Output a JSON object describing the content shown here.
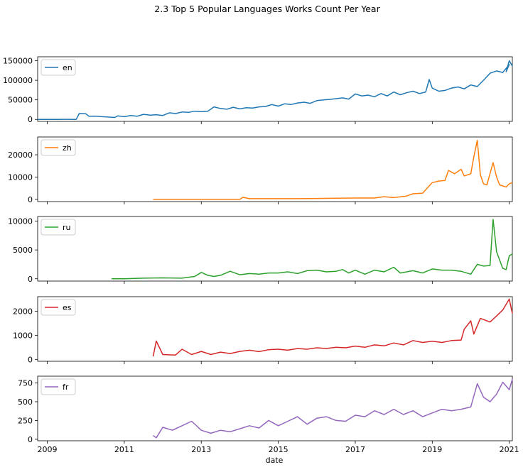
{
  "chart_data": {
    "type": "line",
    "title": "2.3 Top 5 Popular Languages Works Count Per Year",
    "xlabel": "date",
    "x_range": [
      2008.75,
      2021.08
    ],
    "x_ticks": [
      2009,
      2011,
      2013,
      2015,
      2017,
      2019,
      2021
    ],
    "legend_position": "upper-left",
    "panels": [
      {
        "series_name": "en",
        "color": "#1f77b4",
        "ylim": [
          -5000,
          160000
        ],
        "y_ticks": [
          0,
          50000,
          100000,
          150000
        ],
        "points": [
          [
            2008.75,
            0
          ],
          [
            2009.0,
            0
          ],
          [
            2009.25,
            100
          ],
          [
            2009.5,
            200
          ],
          [
            2009.75,
            0
          ],
          [
            2009.83,
            15000
          ],
          [
            2010.0,
            14500
          ],
          [
            2010.08,
            8000
          ],
          [
            2010.25,
            8500
          ],
          [
            2010.42,
            7000
          ],
          [
            2010.58,
            6000
          ],
          [
            2010.75,
            5000
          ],
          [
            2010.83,
            9000
          ],
          [
            2011.0,
            7000
          ],
          [
            2011.17,
            10000
          ],
          [
            2011.33,
            8000
          ],
          [
            2011.5,
            13000
          ],
          [
            2011.67,
            11000
          ],
          [
            2011.83,
            12000
          ],
          [
            2012.0,
            10000
          ],
          [
            2012.17,
            17000
          ],
          [
            2012.33,
            15000
          ],
          [
            2012.5,
            19000
          ],
          [
            2012.67,
            18000
          ],
          [
            2012.83,
            21000
          ],
          [
            2013.0,
            20000
          ],
          [
            2013.17,
            21000
          ],
          [
            2013.33,
            32000
          ],
          [
            2013.5,
            28000
          ],
          [
            2013.67,
            26000
          ],
          [
            2013.83,
            31000
          ],
          [
            2014.0,
            27000
          ],
          [
            2014.17,
            30000
          ],
          [
            2014.33,
            29000
          ],
          [
            2014.5,
            32000
          ],
          [
            2014.67,
            33000
          ],
          [
            2014.83,
            38000
          ],
          [
            2015.0,
            34000
          ],
          [
            2015.17,
            40000
          ],
          [
            2015.33,
            38000
          ],
          [
            2015.5,
            42000
          ],
          [
            2015.67,
            44000
          ],
          [
            2015.83,
            41000
          ],
          [
            2016.0,
            48000
          ],
          [
            2016.17,
            50000
          ],
          [
            2016.33,
            51000
          ],
          [
            2016.5,
            53000
          ],
          [
            2016.67,
            55000
          ],
          [
            2016.83,
            52000
          ],
          [
            2017.0,
            65000
          ],
          [
            2017.17,
            60000
          ],
          [
            2017.33,
            62000
          ],
          [
            2017.5,
            58000
          ],
          [
            2017.67,
            66000
          ],
          [
            2017.83,
            60000
          ],
          [
            2018.0,
            70000
          ],
          [
            2018.17,
            63000
          ],
          [
            2018.33,
            68000
          ],
          [
            2018.5,
            72000
          ],
          [
            2018.67,
            66000
          ],
          [
            2018.83,
            70000
          ],
          [
            2018.92,
            102000
          ],
          [
            2019.0,
            80000
          ],
          [
            2019.17,
            72000
          ],
          [
            2019.33,
            74000
          ],
          [
            2019.5,
            80000
          ],
          [
            2019.67,
            83000
          ],
          [
            2019.83,
            78000
          ],
          [
            2020.0,
            88000
          ],
          [
            2020.17,
            84000
          ],
          [
            2020.33,
            100000
          ],
          [
            2020.5,
            118000
          ],
          [
            2020.67,
            124000
          ],
          [
            2020.83,
            120000
          ],
          [
            2021.0,
            140000
          ],
          [
            2020.92,
            122000
          ],
          [
            2021.0,
            150000
          ],
          [
            2021.08,
            136000
          ]
        ]
      },
      {
        "series_name": "zh",
        "color": "#ff7f0e",
        "ylim": [
          -1000,
          28000
        ],
        "y_ticks": [
          0,
          10000,
          20000
        ],
        "points": [
          [
            2011.75,
            0
          ],
          [
            2012.5,
            0
          ],
          [
            2013.5,
            0
          ],
          [
            2014.0,
            0
          ],
          [
            2014.08,
            900
          ],
          [
            2014.25,
            300
          ],
          [
            2015.0,
            300
          ],
          [
            2015.5,
            300
          ],
          [
            2016.0,
            400
          ],
          [
            2016.5,
            500
          ],
          [
            2017.0,
            600
          ],
          [
            2017.5,
            600
          ],
          [
            2017.75,
            1200
          ],
          [
            2018.0,
            800
          ],
          [
            2018.33,
            1500
          ],
          [
            2018.5,
            2500
          ],
          [
            2018.75,
            2800
          ],
          [
            2019.0,
            7500
          ],
          [
            2019.17,
            8200
          ],
          [
            2019.33,
            8500
          ],
          [
            2019.42,
            13000
          ],
          [
            2019.58,
            11500
          ],
          [
            2019.75,
            13500
          ],
          [
            2019.83,
            10500
          ],
          [
            2020.0,
            11500
          ],
          [
            2020.08,
            19000
          ],
          [
            2020.17,
            26500
          ],
          [
            2020.25,
            11000
          ],
          [
            2020.33,
            7000
          ],
          [
            2020.42,
            6500
          ],
          [
            2020.58,
            16500
          ],
          [
            2020.67,
            10000
          ],
          [
            2020.75,
            6500
          ],
          [
            2020.83,
            6000
          ],
          [
            2020.92,
            5500
          ],
          [
            2021.0,
            7000
          ],
          [
            2021.08,
            7500
          ]
        ]
      },
      {
        "series_name": "ru",
        "color": "#2ca02c",
        "ylim": [
          -400,
          10800
        ],
        "y_ticks": [
          0,
          5000,
          10000
        ],
        "points": [
          [
            2010.67,
            0
          ],
          [
            2011.0,
            0
          ],
          [
            2011.5,
            100
          ],
          [
            2012.0,
            150
          ],
          [
            2012.5,
            100
          ],
          [
            2012.83,
            400
          ],
          [
            2013.0,
            1100
          ],
          [
            2013.17,
            600
          ],
          [
            2013.33,
            400
          ],
          [
            2013.5,
            600
          ],
          [
            2013.75,
            1300
          ],
          [
            2014.0,
            700
          ],
          [
            2014.25,
            900
          ],
          [
            2014.5,
            800
          ],
          [
            2014.75,
            1000
          ],
          [
            2015.0,
            1000
          ],
          [
            2015.25,
            1200
          ],
          [
            2015.5,
            900
          ],
          [
            2015.75,
            1400
          ],
          [
            2016.0,
            1500
          ],
          [
            2016.25,
            1200
          ],
          [
            2016.5,
            1300
          ],
          [
            2016.67,
            1600
          ],
          [
            2016.83,
            1000
          ],
          [
            2017.0,
            1500
          ],
          [
            2017.25,
            800
          ],
          [
            2017.5,
            1500
          ],
          [
            2017.75,
            1200
          ],
          [
            2018.0,
            2000
          ],
          [
            2018.17,
            1000
          ],
          [
            2018.5,
            1400
          ],
          [
            2018.75,
            1000
          ],
          [
            2019.0,
            1700
          ],
          [
            2019.25,
            1500
          ],
          [
            2019.5,
            1500
          ],
          [
            2019.75,
            1300
          ],
          [
            2020.0,
            800
          ],
          [
            2020.17,
            2500
          ],
          [
            2020.33,
            2200
          ],
          [
            2020.5,
            2300
          ],
          [
            2020.58,
            10300
          ],
          [
            2020.67,
            4700
          ],
          [
            2020.83,
            1800
          ],
          [
            2020.92,
            1600
          ],
          [
            2021.0,
            4000
          ],
          [
            2021.08,
            4300
          ]
        ]
      },
      {
        "series_name": "es",
        "color": "#d62728",
        "ylim": [
          -80,
          2600
        ],
        "y_ticks": [
          0,
          1000,
          2000
        ],
        "points": [
          [
            2011.75,
            120
          ],
          [
            2011.83,
            760
          ],
          [
            2012.0,
            200
          ],
          [
            2012.33,
            180
          ],
          [
            2012.5,
            420
          ],
          [
            2012.75,
            200
          ],
          [
            2013.0,
            330
          ],
          [
            2013.25,
            200
          ],
          [
            2013.5,
            300
          ],
          [
            2013.75,
            240
          ],
          [
            2014.0,
            330
          ],
          [
            2014.25,
            380
          ],
          [
            2014.5,
            320
          ],
          [
            2014.75,
            400
          ],
          [
            2015.0,
            420
          ],
          [
            2015.25,
            380
          ],
          [
            2015.5,
            450
          ],
          [
            2015.75,
            420
          ],
          [
            2016.0,
            480
          ],
          [
            2016.25,
            450
          ],
          [
            2016.5,
            500
          ],
          [
            2016.75,
            480
          ],
          [
            2017.0,
            550
          ],
          [
            2017.25,
            500
          ],
          [
            2017.5,
            600
          ],
          [
            2017.75,
            560
          ],
          [
            2018.0,
            680
          ],
          [
            2018.25,
            600
          ],
          [
            2018.5,
            780
          ],
          [
            2018.75,
            700
          ],
          [
            2019.0,
            750
          ],
          [
            2019.25,
            700
          ],
          [
            2019.5,
            780
          ],
          [
            2019.75,
            800
          ],
          [
            2019.83,
            1250
          ],
          [
            2020.0,
            1600
          ],
          [
            2020.08,
            1050
          ],
          [
            2020.25,
            1700
          ],
          [
            2020.5,
            1550
          ],
          [
            2020.67,
            1800
          ],
          [
            2020.83,
            2050
          ],
          [
            2021.0,
            2500
          ],
          [
            2021.08,
            1900
          ]
        ]
      },
      {
        "series_name": "fr",
        "color": "#9467bd",
        "ylim": [
          -20,
          840
        ],
        "y_ticks": [
          0,
          250,
          500,
          750
        ],
        "points": [
          [
            2011.75,
            50
          ],
          [
            2011.83,
            20
          ],
          [
            2012.0,
            160
          ],
          [
            2012.25,
            120
          ],
          [
            2012.5,
            180
          ],
          [
            2012.75,
            240
          ],
          [
            2013.0,
            120
          ],
          [
            2013.25,
            80
          ],
          [
            2013.5,
            120
          ],
          [
            2013.75,
            100
          ],
          [
            2014.0,
            140
          ],
          [
            2014.25,
            180
          ],
          [
            2014.5,
            150
          ],
          [
            2014.75,
            250
          ],
          [
            2015.0,
            180
          ],
          [
            2015.25,
            240
          ],
          [
            2015.5,
            300
          ],
          [
            2015.75,
            200
          ],
          [
            2016.0,
            280
          ],
          [
            2016.25,
            300
          ],
          [
            2016.5,
            250
          ],
          [
            2016.75,
            240
          ],
          [
            2017.0,
            320
          ],
          [
            2017.25,
            300
          ],
          [
            2017.5,
            380
          ],
          [
            2017.75,
            330
          ],
          [
            2018.0,
            400
          ],
          [
            2018.25,
            330
          ],
          [
            2018.5,
            380
          ],
          [
            2018.75,
            300
          ],
          [
            2019.0,
            350
          ],
          [
            2019.25,
            400
          ],
          [
            2019.5,
            380
          ],
          [
            2019.75,
            400
          ],
          [
            2020.0,
            430
          ],
          [
            2020.17,
            740
          ],
          [
            2020.33,
            560
          ],
          [
            2020.5,
            500
          ],
          [
            2020.67,
            600
          ],
          [
            2020.83,
            760
          ],
          [
            2021.0,
            660
          ],
          [
            2021.08,
            800
          ]
        ]
      }
    ]
  }
}
